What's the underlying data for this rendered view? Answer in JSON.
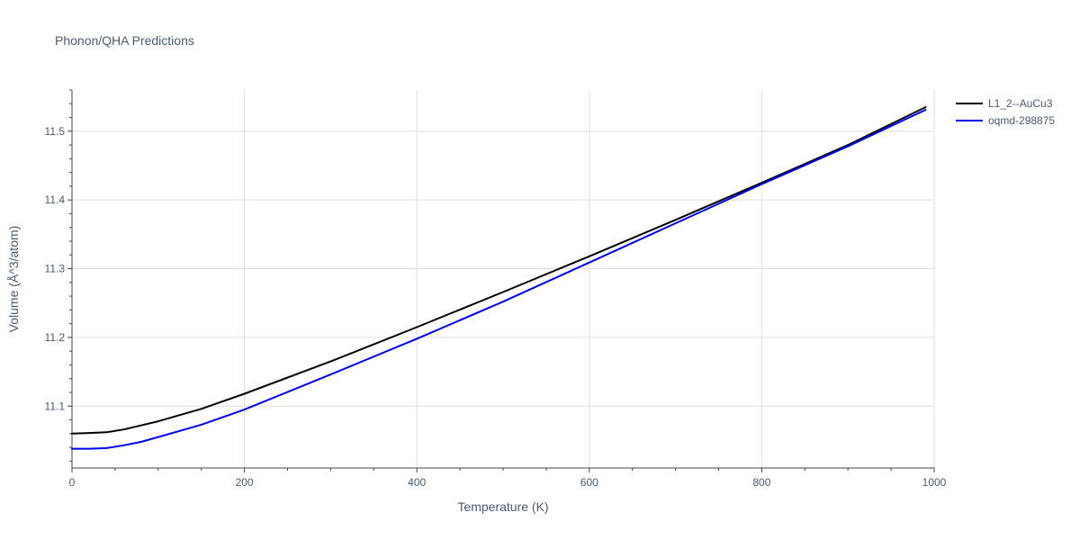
{
  "chart_data": {
    "type": "line",
    "title": "Phonon/QHA Predictions",
    "xlabel": "Temperature (K)",
    "ylabel": "Volume (Å^3/atom)",
    "xlim": [
      0,
      1000
    ],
    "ylim": [
      11.01,
      11.56
    ],
    "x_ticks": [
      0,
      200,
      400,
      600,
      800,
      1000
    ],
    "y_ticks": [
      11.1,
      11.2,
      11.3,
      11.4,
      11.5
    ],
    "x_tick_labels": [
      "0",
      "200",
      "400",
      "600",
      "800",
      "1000"
    ],
    "y_tick_labels": [
      "11.1",
      "11.2",
      "11.3",
      "11.4",
      "11.5"
    ],
    "grid": true,
    "legend_position": "top-right",
    "series": [
      {
        "name": "L1_2--AuCu3",
        "color": "#000000",
        "x": [
          0,
          20,
          40,
          60,
          80,
          100,
          150,
          200,
          300,
          400,
          500,
          600,
          700,
          800,
          900,
          990
        ],
        "y": [
          11.06,
          11.061,
          11.062,
          11.066,
          11.072,
          11.078,
          11.096,
          11.118,
          11.165,
          11.215,
          11.266,
          11.318,
          11.371,
          11.425,
          11.48,
          11.535
        ]
      },
      {
        "name": "oqmd-298875",
        "color": "#0000ee",
        "x": [
          0,
          20,
          40,
          60,
          80,
          100,
          150,
          200,
          300,
          400,
          500,
          600,
          700,
          800,
          900,
          990
        ],
        "y": [
          11.038,
          11.038,
          11.039,
          11.043,
          11.048,
          11.055,
          11.073,
          11.095,
          11.146,
          11.198,
          11.252,
          11.309,
          11.366,
          11.423,
          11.478,
          11.531
        ]
      }
    ]
  }
}
